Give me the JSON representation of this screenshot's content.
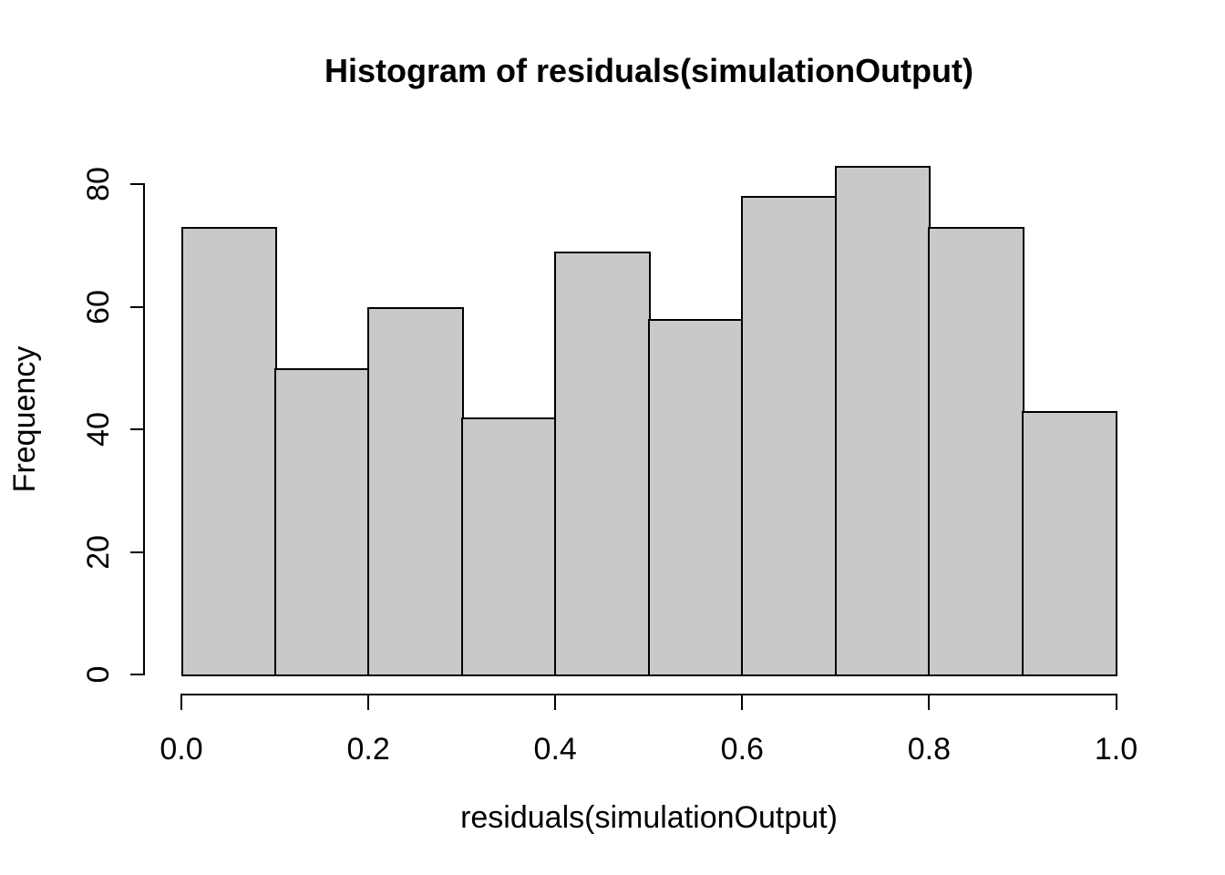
{
  "figure": {
    "background_color": "#ffffff",
    "foreground_color": "#000000"
  },
  "chart_data": {
    "type": "bar",
    "subtype": "histogram",
    "title": "Histogram of residuals(simulationOutput)",
    "xlabel": "residuals(simulationOutput)",
    "ylabel": "Frequency",
    "bin_edges": [
      0.0,
      0.1,
      0.2,
      0.3,
      0.4,
      0.5,
      0.6,
      0.7,
      0.8,
      0.9,
      1.0
    ],
    "counts": [
      73,
      50,
      60,
      42,
      69,
      58,
      78,
      83,
      73,
      43
    ],
    "xlim": [
      0.0,
      1.0
    ],
    "ylim": [
      0,
      80
    ],
    "x_tick_values": [
      0.0,
      0.2,
      0.4,
      0.6,
      0.8,
      1.0
    ],
    "x_tick_labels": [
      "0.0",
      "0.2",
      "0.4",
      "0.6",
      "0.8",
      "1.0"
    ],
    "y_tick_values": [
      0,
      20,
      40,
      60,
      80
    ],
    "y_tick_labels": [
      "0",
      "20",
      "40",
      "60",
      "80"
    ],
    "grid": false,
    "legend": false,
    "bar_fill_color": "#c9c9c9",
    "bar_border_color": "#000000",
    "axis_color": "#000000"
  }
}
